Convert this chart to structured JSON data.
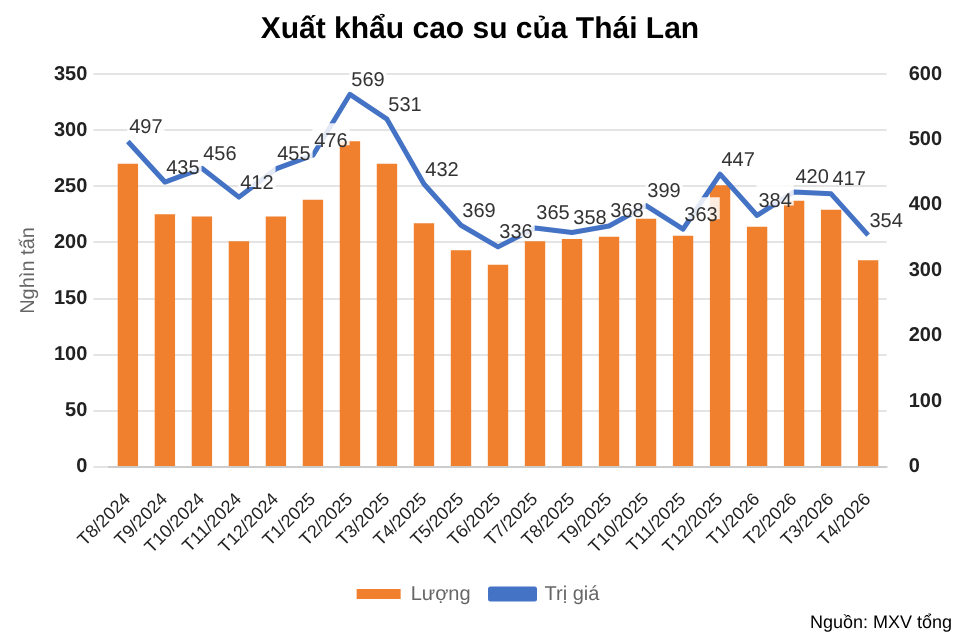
{
  "chart_data": {
    "type": "bar",
    "title": "Xuất khẩu cao su của Thái Lan",
    "ylabel": "Nghìn tấn",
    "categories": [
      "T8/2024",
      "T9/2024",
      "T10/2024",
      "T11/2024",
      "T12/2024",
      "T1/2025",
      "T2/2025",
      "T3/2025",
      "T4/2025",
      "T5/2025",
      "T6/2025",
      "T7/2025",
      "T8/2025",
      "T9/2025",
      "T10/2025",
      "T11/2025",
      "T12/2025",
      "T1/2026",
      "T2/2026",
      "T3/2026",
      "T4/2026"
    ],
    "series": [
      {
        "name": "Lượng",
        "color": "#f07f2e",
        "values": [
          270,
          225,
          223,
          201,
          223,
          238,
          290,
          270,
          217,
          193,
          180,
          201,
          203,
          205,
          221,
          206,
          251,
          214,
          237,
          229,
          184
        ]
      },
      {
        "name": "Trị giá",
        "type": "line",
        "axis": "y2",
        "color": "#4472c4",
        "data_labels": true,
        "values": [
          497,
          435,
          456,
          412,
          455,
          476,
          569,
          531,
          432,
          369,
          336,
          365,
          358,
          368,
          399,
          363,
          447,
          384,
          420,
          417,
          354
        ]
      }
    ],
    "ylim": [
      0,
      350
    ],
    "yticks": [
      0,
      50,
      100,
      150,
      200,
      250,
      300,
      350
    ],
    "y2lim": [
      0,
      600
    ],
    "y2ticks": [
      0,
      100,
      200,
      300,
      400,
      500,
      600
    ],
    "grid": "y",
    "legend": "bottom",
    "marker": "none",
    "annotations": [
      "Nguồn: MXV tổng"
    ]
  }
}
